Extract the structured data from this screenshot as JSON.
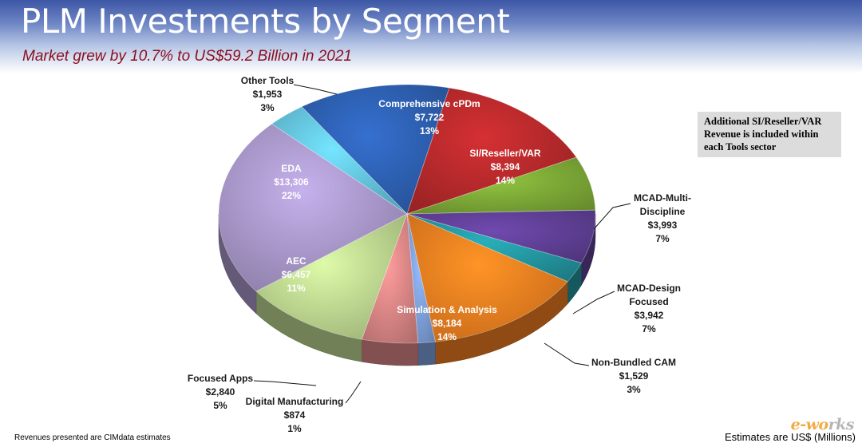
{
  "header": {
    "title": "PLM Investments by Segment",
    "subtitle": "Market grew by 10.7% to US$59.2 Billion in 2021"
  },
  "note": "Additional SI/Reseller/VAR Revenue is included within each Tools sector",
  "footer": {
    "left": "Revenues presented are CIMdata estimates",
    "right": "Estimates are US$ (Millions)"
  },
  "watermark": "e-works",
  "chart_data": {
    "type": "pie",
    "title": "PLM Investments by Segment",
    "subtitle": "Market grew by 10.7% to US$59.2 Billion in 2021",
    "units": "US$ (Millions)",
    "total": "US$59.2 Billion",
    "slices": [
      {
        "name": "Comprehensive cPDm",
        "value": 7722,
        "value_label": "$7,722",
        "percent_label": "13%",
        "color": "#2d5fb0"
      },
      {
        "name": "SI/Reseller/VAR",
        "value": 8394,
        "value_label": "$8,394",
        "percent_label": "14%",
        "color": "#b5292b"
      },
      {
        "name": "MCAD-Multi-Discipline",
        "value": 3993,
        "value_label": "$3,993",
        "percent_label": "7%",
        "color": "#7ba736"
      },
      {
        "name": "MCAD-Design Focused",
        "value": 3942,
        "value_label": "$3,942",
        "percent_label": "7%",
        "color": "#5f3f95"
      },
      {
        "name": "Non-Bundled CAM",
        "value": 1529,
        "value_label": "$1,529",
        "percent_label": "3%",
        "color": "#23949e"
      },
      {
        "name": "Simulation & Analysis",
        "value": 8184,
        "value_label": "$8,184",
        "percent_label": "14%",
        "color": "#ef7d20"
      },
      {
        "name": "Digital Manufacturing",
        "value": 874,
        "value_label": "$874",
        "percent_label": "1%",
        "color": "#7d9fd8"
      },
      {
        "name": "Focused Apps",
        "value": 2840,
        "value_label": "$2,840",
        "percent_label": "5%",
        "color": "#d98585"
      },
      {
        "name": "AEC",
        "value": 6457,
        "value_label": "$6,457",
        "percent_label": "11%",
        "color": "#bcd58f"
      },
      {
        "name": "EDA",
        "value": 13306,
        "value_label": "$13,306",
        "percent_label": "22%",
        "color": "#a796c8"
      },
      {
        "name": "Other Tools",
        "value": 1953,
        "value_label": "$1,953",
        "percent_label": "3%",
        "color": "#63c2dd"
      }
    ]
  }
}
